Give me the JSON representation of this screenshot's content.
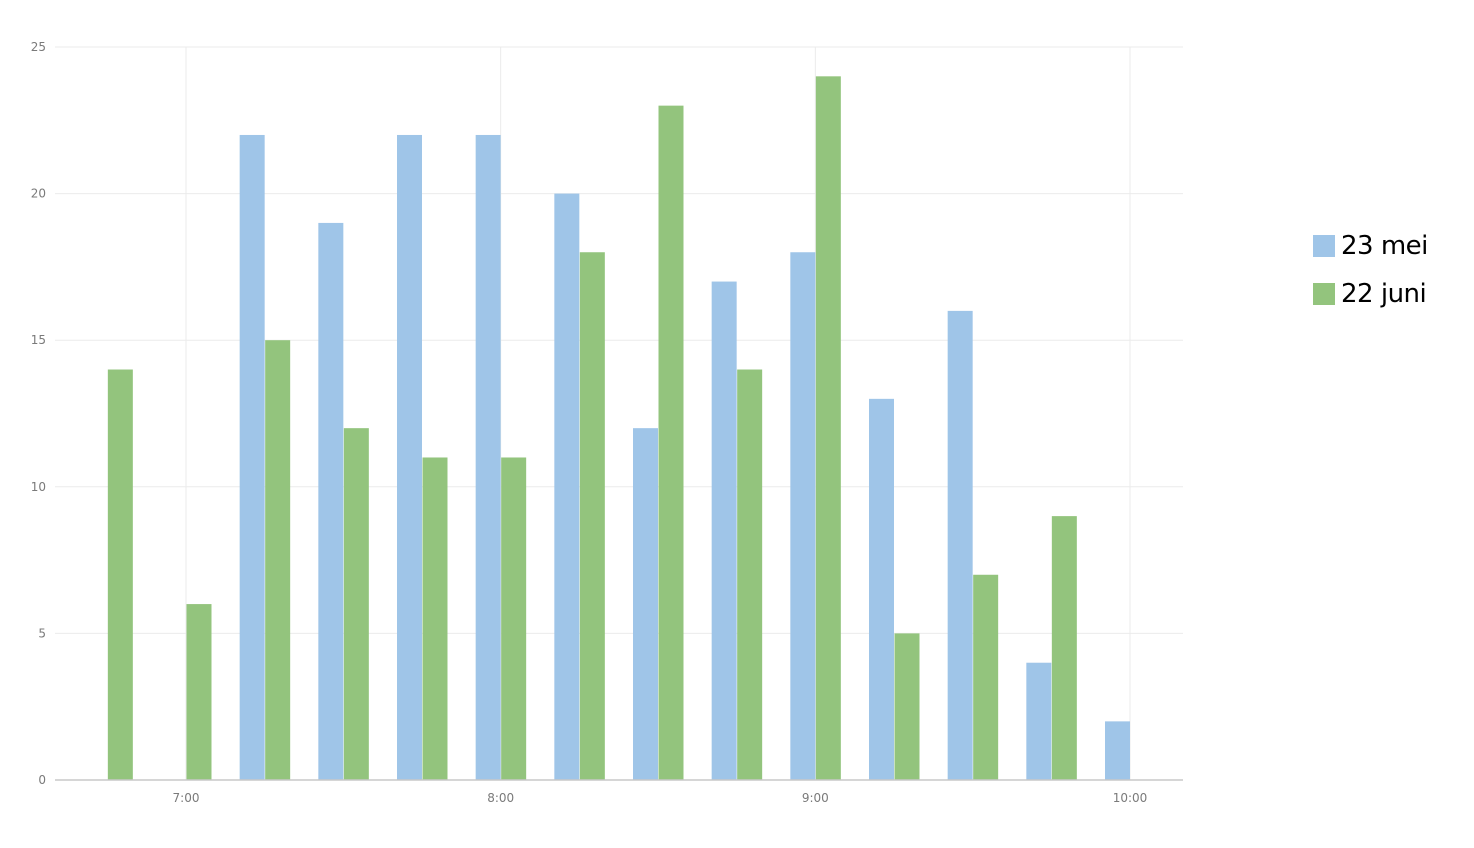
{
  "chart_data": {
    "type": "bar",
    "x_labels": [
      "7:00",
      "8:00",
      "9:00",
      "10:00"
    ],
    "x": [
      "6:45",
      "7:00",
      "7:15",
      "7:30",
      "7:45",
      "8:00",
      "8:15",
      "8:30",
      "8:45",
      "9:00",
      "9:15",
      "9:30",
      "9:45",
      "10:00"
    ],
    "series": [
      {
        "name": "23 mei",
        "color": "#9fc5e8",
        "values": [
          0,
          0,
          22,
          19,
          22,
          22,
          20,
          12,
          17,
          18,
          13,
          16,
          4,
          2
        ]
      },
      {
        "name": "22 juni",
        "color": "#93c47d",
        "values": [
          14,
          6,
          15,
          12,
          11,
          11,
          18,
          23,
          14,
          24,
          5,
          7,
          9,
          0
        ]
      }
    ],
    "y_ticks": [
      "0",
      "5",
      "10",
      "15",
      "20",
      "25"
    ],
    "ylim": [
      0,
      25
    ],
    "grid": true,
    "legend_position": "right"
  }
}
